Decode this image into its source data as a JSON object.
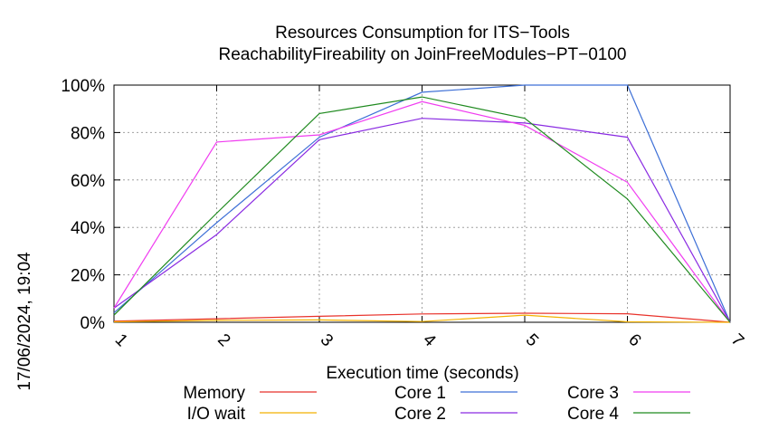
{
  "chart_data": {
    "type": "line",
    "title": [
      "Resources Consumption for ITS−Tools",
      "ReachabilityFireability on JoinFreeModules−PT−0100"
    ],
    "xlabel": "Execution time (seconds)",
    "ylabel": "",
    "side_label": "17/06/2024, 19:04",
    "x": [
      1,
      2,
      3,
      4,
      5,
      6,
      7
    ],
    "x_ticks": [
      "1",
      "2",
      "3",
      "4",
      "5",
      "6",
      "7"
    ],
    "y_ticks": [
      "0%",
      "20%",
      "40%",
      "60%",
      "80%",
      "100%"
    ],
    "xlim": [
      1,
      7
    ],
    "ylim": [
      0,
      100
    ],
    "grid": true,
    "legend_position": "bottom",
    "series": [
      {
        "name": "Memory",
        "color": "#e8322b",
        "values": [
          0.5,
          1.5,
          2.5,
          3.5,
          3.8,
          3.6,
          0
        ]
      },
      {
        "name": "I/O wait",
        "color": "#f2b100",
        "values": [
          0.2,
          0.8,
          1.0,
          0.3,
          3.0,
          0.2,
          0
        ]
      },
      {
        "name": "Core 1",
        "color": "#3d6fd6",
        "values": [
          4,
          42,
          78,
          97,
          100,
          100,
          0
        ]
      },
      {
        "name": "Core 2",
        "color": "#8a2be2",
        "values": [
          6,
          37,
          77,
          86,
          84,
          78,
          0
        ]
      },
      {
        "name": "Core 3",
        "color": "#f03cf0",
        "values": [
          6,
          76,
          79,
          93,
          83,
          59,
          0
        ]
      },
      {
        "name": "Core 4",
        "color": "#1f8a1f",
        "values": [
          3,
          46,
          88,
          95,
          86,
          52,
          0
        ]
      }
    ]
  }
}
